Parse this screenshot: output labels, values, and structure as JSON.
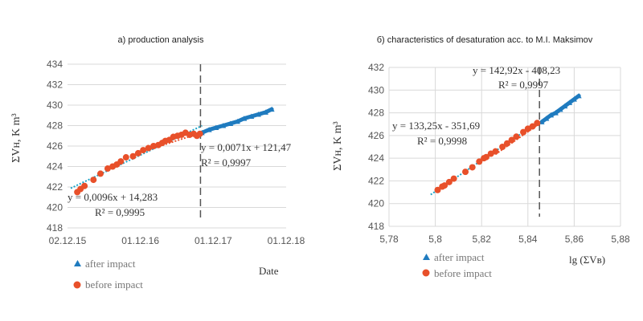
{
  "chart_data": [
    {
      "type": "scatter",
      "title": "a) production analysis",
      "xlabel": "Date",
      "ylabel": "ΣVн, K m³",
      "x_ticks": [
        "02.12.15",
        "01.12.16",
        "01.12.17",
        "01.12.18"
      ],
      "xlim": [
        "2015-12-02",
        "2018-12-01"
      ],
      "ylim": [
        418,
        434
      ],
      "y_ticks": [
        418,
        420,
        422,
        424,
        426,
        428,
        430,
        432,
        434
      ],
      "grid": true,
      "legend_position": "bottom-left",
      "series": [
        {
          "name": "before impact",
          "color": "#e8502a",
          "marker": "circle",
          "x": [
            "2016-01-20",
            "2016-02-05",
            "2016-02-25",
            "2016-04-10",
            "2016-05-15",
            "2016-06-20",
            "2016-07-15",
            "2016-08-05",
            "2016-08-25",
            "2016-09-20",
            "2016-10-25",
            "2016-11-20",
            "2016-12-15",
            "2017-01-10",
            "2017-02-05",
            "2017-03-01",
            "2017-03-20",
            "2017-04-05",
            "2017-04-25",
            "2017-05-15",
            "2017-06-05",
            "2017-06-25",
            "2017-07-15",
            "2017-08-05",
            "2017-08-25",
            "2017-09-10",
            "2017-09-25"
          ],
          "y": [
            421.5,
            421.8,
            422.1,
            422.7,
            423.3,
            423.8,
            424.0,
            424.2,
            424.5,
            424.9,
            425.0,
            425.3,
            425.6,
            425.8,
            426.0,
            426.1,
            426.3,
            426.5,
            426.6,
            426.9,
            427.0,
            427.1,
            427.3,
            427.1,
            427.2,
            427.0,
            427.2
          ]
        },
        {
          "name": "after impact",
          "color": "#1f7bbf",
          "marker": "triangle",
          "x": [
            "2017-10-05",
            "2017-11-10",
            "2017-12-15",
            "2018-01-20",
            "2018-02-25",
            "2018-04-01",
            "2018-05-05",
            "2018-06-10",
            "2018-07-15",
            "2018-08-20",
            "2018-09-20"
          ],
          "y": [
            427.3,
            427.6,
            427.8,
            428.0,
            428.2,
            428.4,
            428.7,
            428.9,
            429.1,
            429.3,
            429.6
          ]
        }
      ],
      "trendlines": [
        {
          "series": "before impact",
          "equation": "y = 0,0096x + 14,283",
          "r2": "R² = 0,9995",
          "color": "#1aa3c8",
          "style": "dotted"
        },
        {
          "series": "after impact",
          "equation": "y = 0,0071x + 121,47",
          "r2": "R² = 0,9997",
          "color": "#e8502a",
          "style": "dotted"
        }
      ],
      "annotations": [
        {
          "type": "vertical-dashed-line",
          "x": "2017-09-28"
        }
      ]
    },
    {
      "type": "scatter",
      "title": "б) characteristics of desaturation acc. to M.I. Maksimov",
      "xlabel": "lg (ΣVв)",
      "ylabel": "ΣVн, K m³",
      "xlim": [
        5.78,
        5.88
      ],
      "x_ticks": [
        "5,78",
        "5,8",
        "5,82",
        "5,84",
        "5,86",
        "5,88"
      ],
      "ylim": [
        418,
        432
      ],
      "y_ticks": [
        418,
        420,
        422,
        424,
        426,
        428,
        430,
        432
      ],
      "grid": true,
      "legend_position": "bottom-left",
      "series": [
        {
          "name": "before impact",
          "color": "#e8502a",
          "marker": "circle",
          "x": [
            5.801,
            5.803,
            5.804,
            5.806,
            5.808,
            5.813,
            5.816,
            5.819,
            5.821,
            5.822,
            5.824,
            5.826,
            5.829,
            5.831,
            5.833,
            5.835,
            5.838,
            5.84,
            5.842,
            5.844
          ],
          "y": [
            421.2,
            421.5,
            421.6,
            421.9,
            422.2,
            422.8,
            423.2,
            423.7,
            424.0,
            424.1,
            424.4,
            424.6,
            425.0,
            425.3,
            425.6,
            425.9,
            426.3,
            426.6,
            426.8,
            427.1
          ]
        },
        {
          "name": "after impact",
          "color": "#1f7bbf",
          "marker": "triangle",
          "x": [
            5.846,
            5.848,
            5.85,
            5.852,
            5.854,
            5.856,
            5.858,
            5.86,
            5.862
          ],
          "y": [
            427.2,
            427.5,
            427.8,
            428.0,
            428.3,
            428.6,
            428.9,
            429.2,
            429.5
          ]
        }
      ],
      "trendlines": [
        {
          "series": "before impact",
          "equation": "y = 133,25x - 351,69",
          "r2": "R² = 0,9998",
          "color": "#1aa3c8",
          "style": "dotted"
        },
        {
          "series": "after impact",
          "equation": "y = 142,92x - 408,23",
          "r2": "R² = 0,9997",
          "color": "#e8502a",
          "style": "dotted"
        }
      ],
      "annotations": [
        {
          "type": "vertical-dashed-line",
          "x": 5.845
        }
      ]
    }
  ]
}
